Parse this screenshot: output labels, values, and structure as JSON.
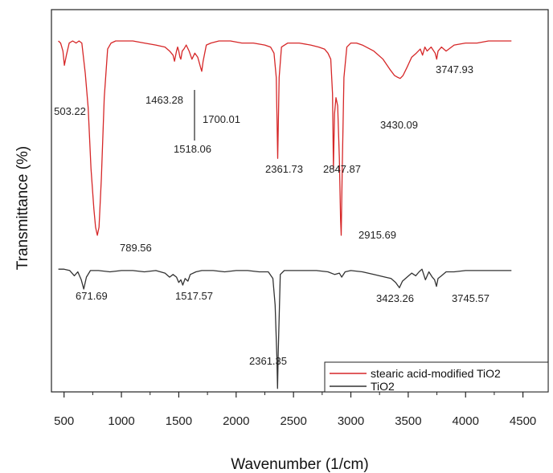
{
  "chart_data": {
    "type": "line",
    "xlabel": "Wavenumber (1/cm)",
    "ylabel": "Transmittance (%)",
    "xlim": [
      390,
      4720
    ],
    "xticks": [
      500,
      1000,
      1500,
      2000,
      2500,
      3000,
      3500,
      4000,
      4500
    ],
    "grid": false,
    "legend_position": "bottom-right",
    "series": [
      {
        "name": "stearic acid-modified TiO2",
        "color": "#d62728",
        "x": [
          450,
          470,
          490,
          503,
          520,
          545,
          575,
          605,
          630,
          655,
          685,
          710,
          735,
          760,
          775,
          790,
          805,
          825,
          850,
          880,
          910,
          950,
          1000,
          1100,
          1200,
          1300,
          1380,
          1420,
          1450,
          1463,
          1480,
          1490,
          1500,
          1510,
          1518,
          1530,
          1545,
          1565,
          1590,
          1615,
          1640,
          1665,
          1690,
          1700,
          1712,
          1740,
          1780,
          1850,
          1950,
          2050,
          2150,
          2250,
          2300,
          2330,
          2350,
          2362,
          2375,
          2395,
          2450,
          2550,
          2650,
          2720,
          2770,
          2800,
          2825,
          2840,
          2848,
          2858,
          2870,
          2885,
          2900,
          2910,
          2916,
          2925,
          2940,
          2965,
          3000,
          3050,
          3100,
          3200,
          3280,
          3340,
          3380,
          3410,
          3430,
          3455,
          3490,
          3530,
          3570,
          3605,
          3625,
          3645,
          3665,
          3700,
          3735,
          3748,
          3760,
          3790,
          3830,
          3900,
          4000,
          4100,
          4200,
          4300,
          4400
        ],
        "y": [
          98,
          97,
          93,
          86,
          91,
          97,
          98,
          97,
          98,
          97,
          82,
          65,
          35,
          15,
          6,
          2,
          6,
          30,
          70,
          94,
          97,
          98,
          98,
          98,
          97,
          96,
          95,
          93,
          91,
          88,
          93,
          95,
          93,
          90,
          89,
          93,
          94,
          96,
          93,
          89,
          92,
          90,
          85,
          83,
          88,
          96,
          97,
          98,
          98,
          97,
          97,
          96,
          95,
          92,
          80,
          40,
          80,
          95,
          97,
          97,
          96,
          95,
          94,
          92,
          89,
          72,
          35,
          62,
          70,
          66,
          40,
          10,
          2,
          35,
          80,
          95,
          97,
          97,
          96,
          93,
          89,
          84,
          81,
          80,
          79.5,
          81,
          85,
          90,
          92,
          94,
          91,
          95,
          93,
          95,
          92,
          89,
          93,
          95,
          93,
          96,
          97,
          97,
          98,
          98,
          98
        ]
      },
      {
        "name": "TiO2",
        "color": "#333333",
        "x": [
          450,
          500,
          550,
          590,
          620,
          650,
          672,
          695,
          730,
          800,
          900,
          1000,
          1100,
          1200,
          1300,
          1380,
          1420,
          1450,
          1480,
          1500,
          1518,
          1535,
          1555,
          1580,
          1600,
          1650,
          1700,
          1800,
          1900,
          2000,
          2100,
          2200,
          2280,
          2320,
          2340,
          2355,
          2361,
          2367,
          2385,
          2420,
          2500,
          2600,
          2700,
          2800,
          2860,
          2900,
          2920,
          2950,
          3000,
          3100,
          3200,
          3300,
          3350,
          3390,
          3423,
          3450,
          3490,
          3530,
          3565,
          3595,
          3620,
          3650,
          3680,
          3710,
          3730,
          3746,
          3760,
          3790,
          3830,
          3900,
          4000,
          4100,
          4200,
          4300,
          4400
        ],
        "y": [
          92,
          92,
          91,
          87,
          90,
          84,
          77,
          86,
          91,
          91,
          90,
          91,
          91,
          90,
          91,
          89,
          86,
          88,
          86,
          82,
          84,
          80,
          85,
          83,
          88,
          90,
          91,
          91,
          90,
          91,
          91,
          90,
          90,
          85,
          65,
          25,
          2,
          30,
          88,
          91,
          91,
          91,
          91,
          90,
          88,
          89,
          86,
          90,
          91,
          90,
          88,
          86,
          85,
          82,
          78,
          83,
          86,
          89,
          87,
          90,
          92,
          84,
          90,
          86,
          84,
          79,
          85,
          87,
          90,
          90,
          91,
          91,
          91,
          91,
          91
        ]
      }
    ],
    "annotations": [
      {
        "text": "503.22",
        "series": 0
      },
      {
        "text": "789.56",
        "series": 0
      },
      {
        "text": "1463.28",
        "series": 0
      },
      {
        "text": "1518.06",
        "series": 0
      },
      {
        "text": "1700.01",
        "series": 0
      },
      {
        "text": "2361.73",
        "series": 0
      },
      {
        "text": "2847.87",
        "series": 0
      },
      {
        "text": "2915.69",
        "series": 0
      },
      {
        "text": "3430.09",
        "series": 0
      },
      {
        "text": "3747.93",
        "series": 0
      },
      {
        "text": "671.69",
        "series": 1
      },
      {
        "text": "1517.57",
        "series": 1
      },
      {
        "text": "2361.35",
        "series": 1
      },
      {
        "text": "3423.26",
        "series": 1
      },
      {
        "text": "3745.57",
        "series": 1
      }
    ]
  }
}
